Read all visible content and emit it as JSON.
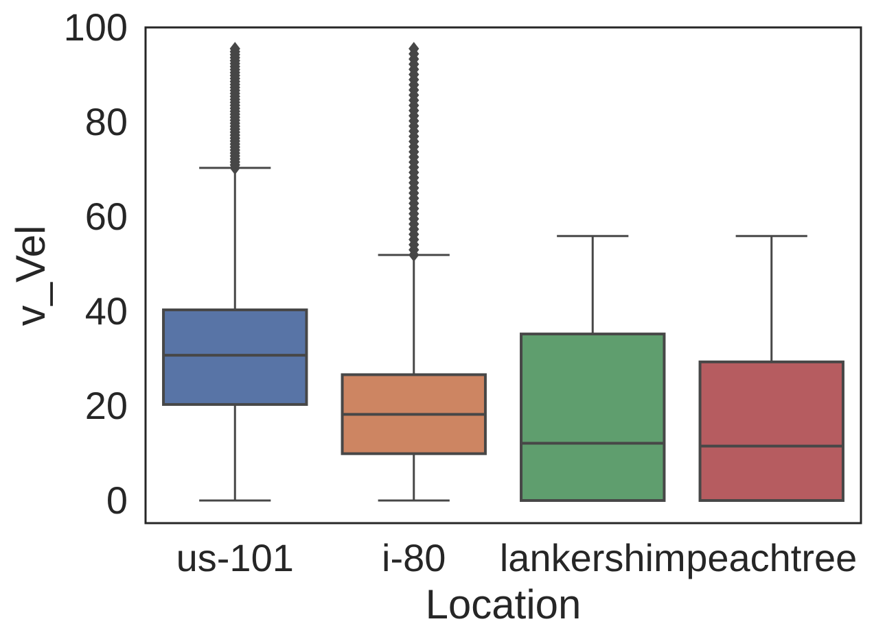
{
  "chart_data": {
    "type": "box",
    "xlabel": "Location",
    "ylabel": "v_Vel",
    "ylim": [
      -5,
      100
    ],
    "yticks": [
      0,
      20,
      40,
      60,
      80,
      100
    ],
    "grid": false,
    "legend": "none",
    "categories": [
      "us-101",
      "i-80",
      "lankershim",
      "peachtree"
    ],
    "series": [
      {
        "category": "us-101",
        "color": "#5874a6",
        "whisker_low": 0,
        "q1": 20.3,
        "median": 30.7,
        "q3": 40.3,
        "whisker_high": 70.3,
        "outliers_range": [
          70.3,
          95.5
        ]
      },
      {
        "category": "i-80",
        "color": "#cd8562",
        "whisker_low": 0,
        "q1": 9.9,
        "median": 18.2,
        "q3": 26.6,
        "whisker_high": 51.9,
        "outliers_range": [
          51.9,
          95.5
        ]
      },
      {
        "category": "lankershim",
        "color": "#5f9e6e",
        "whisker_low": 0,
        "q1": 0,
        "median": 12.1,
        "q3": 35.2,
        "whisker_high": 55.9,
        "outliers_range": null
      },
      {
        "category": "peachtree",
        "color": "#b65c60",
        "whisker_low": 0,
        "q1": 0,
        "median": 11.5,
        "q3": 29.3,
        "whisker_high": 55.9,
        "outliers_range": null
      }
    ]
  }
}
